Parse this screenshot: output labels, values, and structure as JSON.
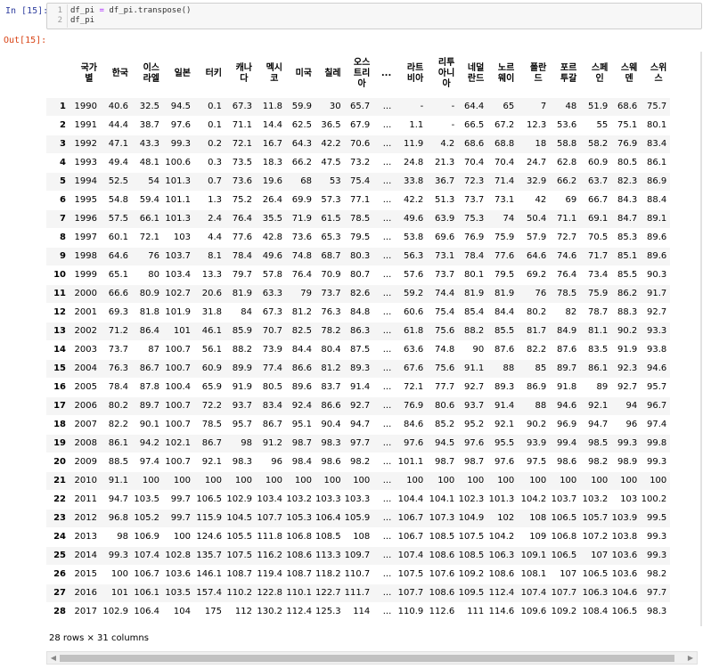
{
  "cell": {
    "in_prompt": "In [15]:",
    "out_prompt": "Out[15]:",
    "code_lines": [
      {
        "n": "1",
        "pre": "df_pi ",
        "op": "=",
        "post": " df_pi.transpose()"
      },
      {
        "n": "2",
        "pre": "df_pi",
        "op": "",
        "post": ""
      }
    ]
  },
  "table": {
    "columns": [
      {
        "label": "국가\n별"
      },
      {
        "label": "한국"
      },
      {
        "label": "이스\n라엘"
      },
      {
        "label": "일본"
      },
      {
        "label": "터키"
      },
      {
        "label": "캐나\n다"
      },
      {
        "label": "멕시\n코"
      },
      {
        "label": "미국"
      },
      {
        "label": "칠레"
      },
      {
        "label": "오스\n트리\n아"
      },
      {
        "label": "..."
      },
      {
        "label": "라트\n비아"
      },
      {
        "label": "리투\n아니\n아"
      },
      {
        "label": "네덜\n란드"
      },
      {
        "label": "노르\n웨이"
      },
      {
        "label": "폴란\n드"
      },
      {
        "label": "포르\n투갈"
      },
      {
        "label": "스페\n인"
      },
      {
        "label": "스웨\n덴"
      },
      {
        "label": "스위\n스"
      }
    ],
    "rows": [
      [
        "1",
        "1990",
        "40.6",
        "32.5",
        "94.5",
        "0.1",
        "67.3",
        "11.8",
        "59.9",
        "30",
        "65.7",
        "...",
        "-",
        "-",
        "64.4",
        "65",
        "7",
        "48",
        "51.9",
        "68.6",
        "75.7"
      ],
      [
        "2",
        "1991",
        "44.4",
        "38.7",
        "97.6",
        "0.1",
        "71.1",
        "14.4",
        "62.5",
        "36.5",
        "67.9",
        "...",
        "1.1",
        "-",
        "66.5",
        "67.2",
        "12.3",
        "53.6",
        "55",
        "75.1",
        "80.1"
      ],
      [
        "3",
        "1992",
        "47.1",
        "43.3",
        "99.3",
        "0.2",
        "72.1",
        "16.7",
        "64.3",
        "42.2",
        "70.6",
        "...",
        "11.9",
        "4.2",
        "68.6",
        "68.8",
        "18",
        "58.8",
        "58.2",
        "76.9",
        "83.4"
      ],
      [
        "4",
        "1993",
        "49.4",
        "48.1",
        "100.6",
        "0.3",
        "73.5",
        "18.3",
        "66.2",
        "47.5",
        "73.2",
        "...",
        "24.8",
        "21.3",
        "70.4",
        "70.4",
        "24.7",
        "62.8",
        "60.9",
        "80.5",
        "86.1"
      ],
      [
        "5",
        "1994",
        "52.5",
        "54",
        "101.3",
        "0.7",
        "73.6",
        "19.6",
        "68",
        "53",
        "75.4",
        "...",
        "33.8",
        "36.7",
        "72.3",
        "71.4",
        "32.9",
        "66.2",
        "63.7",
        "82.3",
        "86.9"
      ],
      [
        "6",
        "1995",
        "54.8",
        "59.4",
        "101.1",
        "1.3",
        "75.2",
        "26.4",
        "69.9",
        "57.3",
        "77.1",
        "...",
        "42.2",
        "51.3",
        "73.7",
        "73.1",
        "42",
        "69",
        "66.7",
        "84.3",
        "88.4"
      ],
      [
        "7",
        "1996",
        "57.5",
        "66.1",
        "101.3",
        "2.4",
        "76.4",
        "35.5",
        "71.9",
        "61.5",
        "78.5",
        "...",
        "49.6",
        "63.9",
        "75.3",
        "74",
        "50.4",
        "71.1",
        "69.1",
        "84.7",
        "89.1"
      ],
      [
        "8",
        "1997",
        "60.1",
        "72.1",
        "103",
        "4.4",
        "77.6",
        "42.8",
        "73.6",
        "65.3",
        "79.5",
        "...",
        "53.8",
        "69.6",
        "76.9",
        "75.9",
        "57.9",
        "72.7",
        "70.5",
        "85.3",
        "89.6"
      ],
      [
        "9",
        "1998",
        "64.6",
        "76",
        "103.7",
        "8.1",
        "78.4",
        "49.6",
        "74.8",
        "68.7",
        "80.3",
        "...",
        "56.3",
        "73.1",
        "78.4",
        "77.6",
        "64.6",
        "74.6",
        "71.7",
        "85.1",
        "89.6"
      ],
      [
        "10",
        "1999",
        "65.1",
        "80",
        "103.4",
        "13.3",
        "79.7",
        "57.8",
        "76.4",
        "70.9",
        "80.7",
        "...",
        "57.6",
        "73.7",
        "80.1",
        "79.5",
        "69.2",
        "76.4",
        "73.4",
        "85.5",
        "90.3"
      ],
      [
        "11",
        "2000",
        "66.6",
        "80.9",
        "102.7",
        "20.6",
        "81.9",
        "63.3",
        "79",
        "73.7",
        "82.6",
        "...",
        "59.2",
        "74.4",
        "81.9",
        "81.9",
        "76",
        "78.5",
        "75.9",
        "86.2",
        "91.7"
      ],
      [
        "12",
        "2001",
        "69.3",
        "81.8",
        "101.9",
        "31.8",
        "84",
        "67.3",
        "81.2",
        "76.3",
        "84.8",
        "...",
        "60.6",
        "75.4",
        "85.4",
        "84.4",
        "80.2",
        "82",
        "78.7",
        "88.3",
        "92.7"
      ],
      [
        "13",
        "2002",
        "71.2",
        "86.4",
        "101",
        "46.1",
        "85.9",
        "70.7",
        "82.5",
        "78.2",
        "86.3",
        "...",
        "61.8",
        "75.6",
        "88.2",
        "85.5",
        "81.7",
        "84.9",
        "81.1",
        "90.2",
        "93.3"
      ],
      [
        "14",
        "2003",
        "73.7",
        "87",
        "100.7",
        "56.1",
        "88.2",
        "73.9",
        "84.4",
        "80.4",
        "87.5",
        "...",
        "63.6",
        "74.8",
        "90",
        "87.6",
        "82.2",
        "87.6",
        "83.5",
        "91.9",
        "93.8"
      ],
      [
        "15",
        "2004",
        "76.3",
        "86.7",
        "100.7",
        "60.9",
        "89.9",
        "77.4",
        "86.6",
        "81.2",
        "89.3",
        "...",
        "67.6",
        "75.6",
        "91.1",
        "88",
        "85",
        "89.7",
        "86.1",
        "92.3",
        "94.6"
      ],
      [
        "16",
        "2005",
        "78.4",
        "87.8",
        "100.4",
        "65.9",
        "91.9",
        "80.5",
        "89.6",
        "83.7",
        "91.4",
        "...",
        "72.1",
        "77.7",
        "92.7",
        "89.3",
        "86.9",
        "91.8",
        "89",
        "92.7",
        "95.7"
      ],
      [
        "17",
        "2006",
        "80.2",
        "89.7",
        "100.7",
        "72.2",
        "93.7",
        "83.4",
        "92.4",
        "86.6",
        "92.7",
        "...",
        "76.9",
        "80.6",
        "93.7",
        "91.4",
        "88",
        "94.6",
        "92.1",
        "94",
        "96.7"
      ],
      [
        "18",
        "2007",
        "82.2",
        "90.1",
        "100.7",
        "78.5",
        "95.7",
        "86.7",
        "95.1",
        "90.4",
        "94.7",
        "...",
        "84.6",
        "85.2",
        "95.2",
        "92.1",
        "90.2",
        "96.9",
        "94.7",
        "96",
        "97.4"
      ],
      [
        "19",
        "2008",
        "86.1",
        "94.2",
        "102.1",
        "86.7",
        "98",
        "91.2",
        "98.7",
        "98.3",
        "97.7",
        "...",
        "97.6",
        "94.5",
        "97.6",
        "95.5",
        "93.9",
        "99.4",
        "98.5",
        "99.3",
        "99.8"
      ],
      [
        "20",
        "2009",
        "88.5",
        "97.4",
        "100.7",
        "92.1",
        "98.3",
        "96",
        "98.4",
        "98.6",
        "98.2",
        "...",
        "101.1",
        "98.7",
        "98.7",
        "97.6",
        "97.5",
        "98.6",
        "98.2",
        "98.9",
        "99.3"
      ],
      [
        "21",
        "2010",
        "91.1",
        "100",
        "100",
        "100",
        "100",
        "100",
        "100",
        "100",
        "100",
        "...",
        "100",
        "100",
        "100",
        "100",
        "100",
        "100",
        "100",
        "100",
        "100"
      ],
      [
        "22",
        "2011",
        "94.7",
        "103.5",
        "99.7",
        "106.5",
        "102.9",
        "103.4",
        "103.2",
        "103.3",
        "103.3",
        "...",
        "104.4",
        "104.1",
        "102.3",
        "101.3",
        "104.2",
        "103.7",
        "103.2",
        "103",
        "100.2"
      ],
      [
        "23",
        "2012",
        "96.8",
        "105.2",
        "99.7",
        "115.9",
        "104.5",
        "107.7",
        "105.3",
        "106.4",
        "105.9",
        "...",
        "106.7",
        "107.3",
        "104.9",
        "102",
        "108",
        "106.5",
        "105.7",
        "103.9",
        "99.5"
      ],
      [
        "24",
        "2013",
        "98",
        "106.9",
        "100",
        "124.6",
        "105.5",
        "111.8",
        "106.8",
        "108.5",
        "108",
        "...",
        "106.7",
        "108.5",
        "107.5",
        "104.2",
        "109",
        "106.8",
        "107.2",
        "103.8",
        "99.3"
      ],
      [
        "25",
        "2014",
        "99.3",
        "107.4",
        "102.8",
        "135.7",
        "107.5",
        "116.2",
        "108.6",
        "113.3",
        "109.7",
        "...",
        "107.4",
        "108.6",
        "108.5",
        "106.3",
        "109.1",
        "106.5",
        "107",
        "103.6",
        "99.3"
      ],
      [
        "26",
        "2015",
        "100",
        "106.7",
        "103.6",
        "146.1",
        "108.7",
        "119.4",
        "108.7",
        "118.2",
        "110.7",
        "...",
        "107.5",
        "107.6",
        "109.2",
        "108.6",
        "108.1",
        "107",
        "106.5",
        "103.6",
        "98.2"
      ],
      [
        "27",
        "2016",
        "101",
        "106.1",
        "103.5",
        "157.4",
        "110.2",
        "122.8",
        "110.1",
        "122.7",
        "111.7",
        "...",
        "107.7",
        "108.6",
        "109.5",
        "112.4",
        "107.4",
        "107.7",
        "106.3",
        "104.6",
        "97.7"
      ],
      [
        "28",
        "2017",
        "102.9",
        "106.4",
        "104",
        "175",
        "112",
        "130.2",
        "112.4",
        "125.3",
        "114",
        "...",
        "110.9",
        "112.6",
        "111",
        "114.6",
        "109.6",
        "109.2",
        "108.4",
        "106.5",
        "98.3"
      ]
    ],
    "summary": "28 rows × 31 columns"
  }
}
